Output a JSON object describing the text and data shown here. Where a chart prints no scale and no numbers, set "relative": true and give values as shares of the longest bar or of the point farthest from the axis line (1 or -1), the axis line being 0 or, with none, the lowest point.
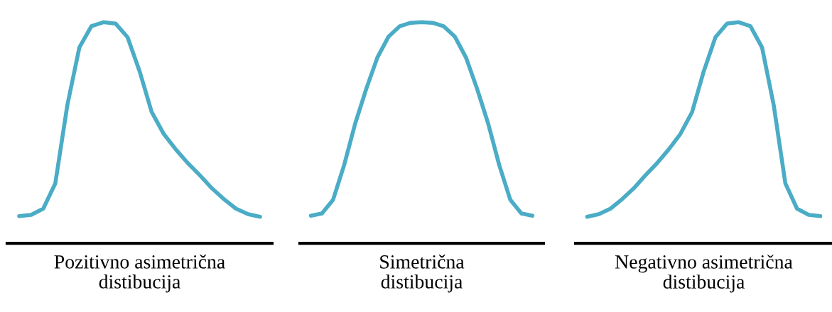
{
  "chart_data": [
    {
      "type": "line",
      "relative": true,
      "xlabel": "Pozitivno asimetrična\ndistibucija",
      "categories": [
        null,
        null,
        null,
        null,
        null,
        null,
        null,
        null,
        null,
        null,
        null,
        null,
        null,
        null,
        null,
        null,
        null,
        null,
        null,
        null,
        null
      ],
      "series": [
        {
          "color": "#4bacc6",
          "values": [
            0.123,
            0.129,
            0.157,
            0.271,
            0.625,
            0.886,
            0.982,
            1.0,
            0.994,
            0.932,
            0.778,
            0.594,
            0.495,
            0.425,
            0.363,
            0.308,
            0.249,
            0.2,
            0.157,
            0.132,
            0.12
          ]
        }
      ]
    },
    {
      "type": "line",
      "relative": true,
      "xlabel": "Simetrična\ndistibucija",
      "categories": [
        null,
        null,
        null,
        null,
        null,
        null,
        null,
        null,
        null,
        null,
        null,
        null,
        null,
        null,
        null,
        null,
        null,
        null,
        null,
        null,
        null
      ],
      "series": [
        {
          "color": "#4bacc6",
          "values": [
            0.125,
            0.135,
            0.197,
            0.354,
            0.542,
            0.699,
            0.84,
            0.934,
            0.981,
            0.997,
            1.0,
            0.997,
            0.981,
            0.934,
            0.84,
            0.699,
            0.542,
            0.354,
            0.197,
            0.135,
            0.125
          ]
        }
      ]
    },
    {
      "type": "line",
      "relative": true,
      "xlabel": "Negativno asimetrična\ndistibucija",
      "categories": [
        null,
        null,
        null,
        null,
        null,
        null,
        null,
        null,
        null,
        null,
        null,
        null,
        null,
        null,
        null,
        null,
        null,
        null,
        null,
        null,
        null
      ],
      "series": [
        {
          "color": "#4bacc6",
          "values": [
            0.12,
            0.132,
            0.157,
            0.2,
            0.249,
            0.308,
            0.363,
            0.425,
            0.495,
            0.594,
            0.778,
            0.932,
            0.994,
            1.0,
            0.982,
            0.886,
            0.625,
            0.271,
            0.157,
            0.129,
            0.123
          ]
        }
      ]
    }
  ]
}
